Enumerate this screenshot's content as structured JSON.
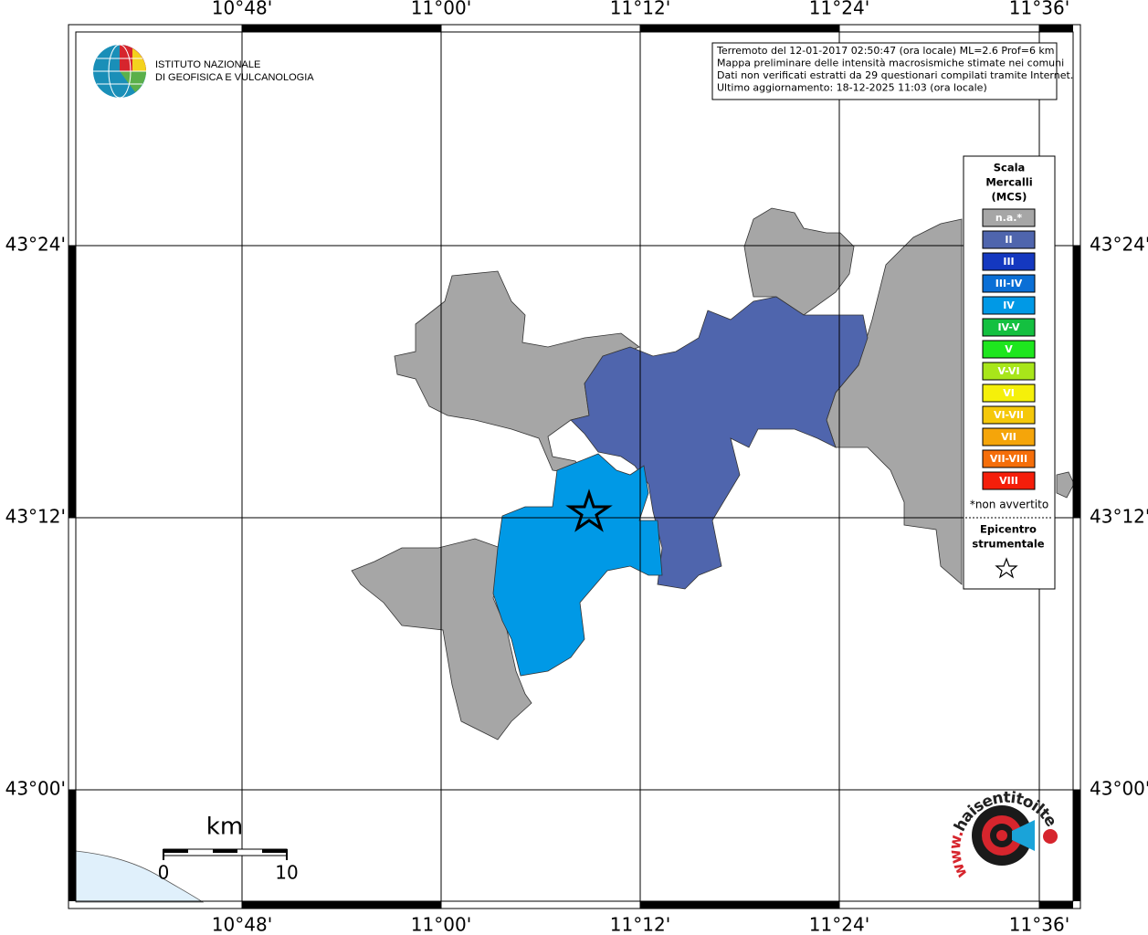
{
  "axes": {
    "top": [
      "10°48'",
      "11°00'",
      "11°12'",
      "11°24'",
      "11°36'"
    ],
    "bottom": [
      "10°48'",
      "11°00'",
      "11°12'",
      "11°24'",
      "11°36'"
    ],
    "left": [
      "43°24'",
      "43°12'",
      "43°00'"
    ],
    "right": [
      "43°24'",
      "43°12'",
      "43°00'"
    ]
  },
  "logo": {
    "line1": "ISTITUTO NAZIONALE",
    "line2": "DI GEOFISICA E VULCANOLOGIA"
  },
  "info": {
    "lines": [
      "Terremoto del 12-01-2017 02:50:47 (ora locale) ML=2.6 Prof=6 km",
      "Mappa preliminare delle intensità macrosismiche stimate nei comuni",
      "Dati non verificati estratti da 29 questionari compilati tramite Internet.",
      "Ultimo aggiornamento: 18-12-2025 11:03 (ora locale)"
    ]
  },
  "legend": {
    "title_lines": [
      "Scala",
      "Mercalli",
      "(MCS)"
    ],
    "items": [
      {
        "label": "n.a.*",
        "color": "#a6a6a6"
      },
      {
        "label": "II",
        "color": "#4f65ad"
      },
      {
        "label": "III",
        "color": "#1438c0"
      },
      {
        "label": "III-IV",
        "color": "#0a6fd6"
      },
      {
        "label": "IV",
        "color": "#0099e6"
      },
      {
        "label": "IV-V",
        "color": "#14c040"
      },
      {
        "label": "V",
        "color": "#1ee61e"
      },
      {
        "label": "V-VI",
        "color": "#a8e61a"
      },
      {
        "label": "VI",
        "color": "#f5f00a"
      },
      {
        "label": "VI-VII",
        "color": "#f5c80a"
      },
      {
        "label": "VII",
        "color": "#f5a50a"
      },
      {
        "label": "VII-VIII",
        "color": "#f56e0a"
      },
      {
        "label": "VIII",
        "color": "#f51e0a"
      }
    ],
    "note": "*non avvertito",
    "epicenter": [
      "Epicentro",
      "strumentale"
    ]
  },
  "scale_bar": {
    "unit": "km",
    "start": "0",
    "end": "10"
  },
  "site_logo": {
    "prefix": "www.",
    "name": "haisentitoilterremoto.it"
  }
}
